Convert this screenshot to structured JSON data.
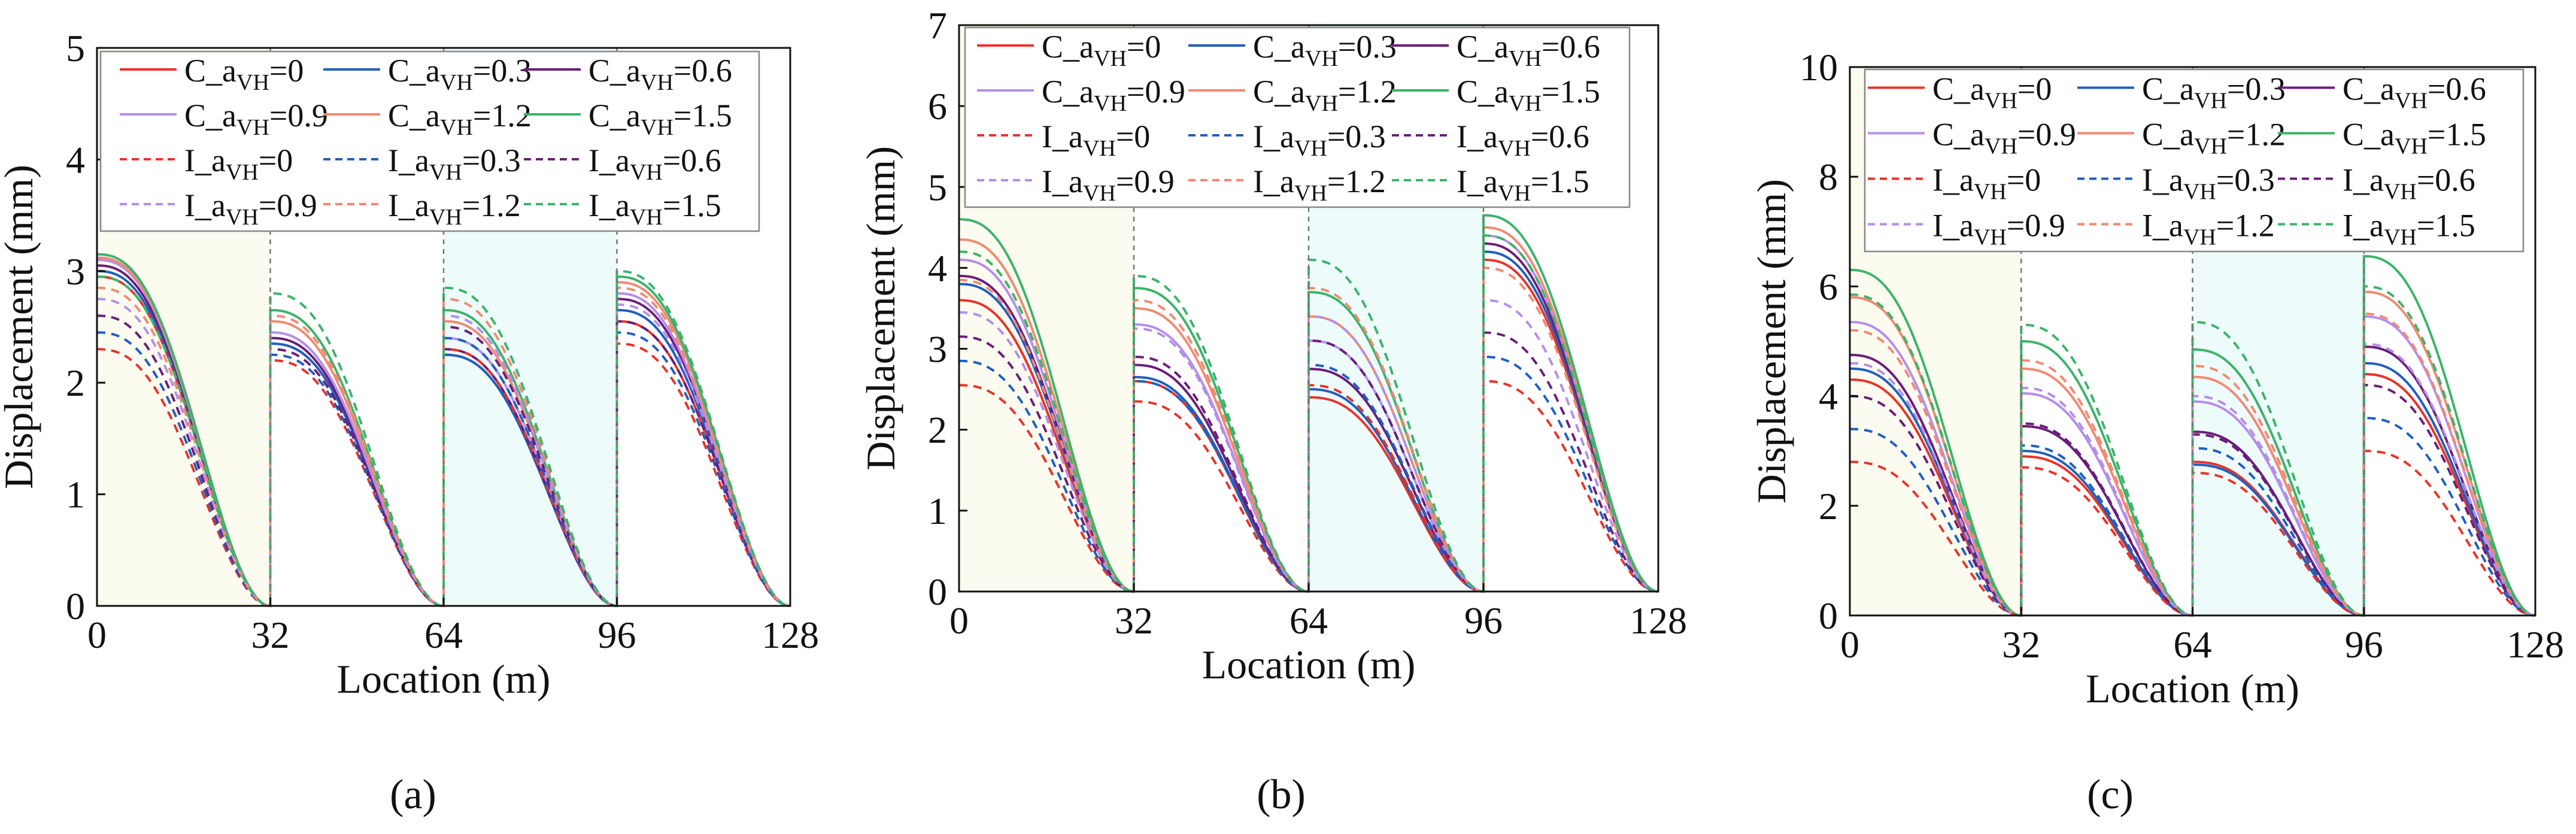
{
  "figure": {
    "x_unit_label": "Location (m)",
    "y_unit_label": "Displacement (mm)"
  },
  "legend_entries": [
    {
      "prefix": "C_a",
      "sub": "VH",
      "suffix": "=0",
      "color": "#e8332a",
      "dash": false
    },
    {
      "prefix": "C_a",
      "sub": "VH",
      "suffix": "=0.3",
      "color": "#1f5fbf",
      "dash": false
    },
    {
      "prefix": "C_a",
      "sub": "VH",
      "suffix": "=0.6",
      "color": "#6b1d7a",
      "dash": false
    },
    {
      "prefix": "C_a",
      "sub": "VH",
      "suffix": "=0.9",
      "color": "#b58ee8",
      "dash": false
    },
    {
      "prefix": "C_a",
      "sub": "VH",
      "suffix": "=1.2",
      "color": "#f08a72",
      "dash": false
    },
    {
      "prefix": "C_a",
      "sub": "VH",
      "suffix": "=1.5",
      "color": "#3cb36a",
      "dash": false
    },
    {
      "prefix": "I_a",
      "sub": "VH",
      "suffix": "=0",
      "color": "#e8332a",
      "dash": true
    },
    {
      "prefix": "I_a",
      "sub": "VH",
      "suffix": "=0.3",
      "color": "#1f5fbf",
      "dash": true
    },
    {
      "prefix": "I_a",
      "sub": "VH",
      "suffix": "=0.6",
      "color": "#6b1d7a",
      "dash": true
    },
    {
      "prefix": "I_a",
      "sub": "VH",
      "suffix": "=0.9",
      "color": "#b58ee8",
      "dash": true
    },
    {
      "prefix": "I_a",
      "sub": "VH",
      "suffix": "=1.2",
      "color": "#f08a72",
      "dash": true
    },
    {
      "prefix": "I_a",
      "sub": "VH",
      "suffix": "=1.5",
      "color": "#3cb36a",
      "dash": true
    }
  ],
  "chart_data": [
    {
      "panel_label": "(a)",
      "type": "line",
      "xlabel": "Location (m)",
      "ylabel": "Displacement (mm)",
      "xlim": [
        0,
        128
      ],
      "ylim": [
        0,
        5
      ],
      "xticks": [
        "0",
        "32",
        "64",
        "96",
        "128"
      ],
      "yticks": [
        "0",
        "1",
        "2",
        "3",
        "4",
        "5"
      ],
      "segment_boundaries": [
        32,
        64,
        96
      ],
      "segment_shading": [
        "#fbfbf0",
        "#ffffff",
        "#eefbfb",
        "#ffffff"
      ],
      "series": [
        {
          "name": "C_aVH=0",
          "segment_peaks": [
            2.95,
            2.35,
            2.25,
            2.55
          ]
        },
        {
          "name": "C_aVH=0.3",
          "segment_peaks": [
            3.0,
            2.35,
            2.25,
            2.65
          ]
        },
        {
          "name": "C_aVH=0.6",
          "segment_peaks": [
            3.05,
            2.4,
            2.3,
            2.75
          ]
        },
        {
          "name": "C_aVH=0.9",
          "segment_peaks": [
            3.1,
            2.45,
            2.4,
            2.8
          ]
        },
        {
          "name": "C_aVH=1.2",
          "segment_peaks": [
            3.12,
            2.55,
            2.55,
            2.9
          ]
        },
        {
          "name": "C_aVH=1.5",
          "segment_peaks": [
            3.15,
            2.65,
            2.65,
            2.95
          ]
        },
        {
          "name": "I_aVH=0",
          "segment_peaks": [
            2.3,
            2.2,
            2.3,
            2.35
          ]
        },
        {
          "name": "I_aVH=0.3",
          "segment_peaks": [
            2.45,
            2.25,
            2.4,
            2.45
          ]
        },
        {
          "name": "I_aVH=0.6",
          "segment_peaks": [
            2.6,
            2.3,
            2.5,
            2.55
          ]
        },
        {
          "name": "I_aVH=0.9",
          "segment_peaks": [
            2.75,
            2.45,
            2.6,
            2.7
          ]
        },
        {
          "name": "I_aVH=1.2",
          "segment_peaks": [
            2.85,
            2.6,
            2.75,
            2.85
          ]
        },
        {
          "name": "I_aVH=1.5",
          "segment_peaks": [
            2.95,
            2.8,
            2.85,
            3.0
          ]
        }
      ]
    },
    {
      "panel_label": "(b)",
      "type": "line",
      "xlabel": "Location (m)",
      "ylabel": "Displacement (mm)",
      "xlim": [
        0,
        128
      ],
      "ylim": [
        0,
        7
      ],
      "xticks": [
        "0",
        "32",
        "64",
        "96",
        "128"
      ],
      "yticks": [
        "0",
        "1",
        "2",
        "3",
        "4",
        "5",
        "6",
        "7"
      ],
      "segment_boundaries": [
        32,
        64,
        96
      ],
      "segment_shading": [
        "#fbfbf0",
        "#ffffff",
        "#eefbfb",
        "#ffffff"
      ],
      "series": [
        {
          "name": "C_aVH=0",
          "segment_peaks": [
            3.6,
            2.6,
            2.4,
            4.1
          ]
        },
        {
          "name": "C_aVH=0.3",
          "segment_peaks": [
            3.8,
            2.65,
            2.5,
            4.2
          ]
        },
        {
          "name": "C_aVH=0.6",
          "segment_peaks": [
            3.9,
            2.8,
            2.75,
            4.3
          ]
        },
        {
          "name": "C_aVH=0.9",
          "segment_peaks": [
            4.1,
            3.3,
            3.1,
            4.4
          ]
        },
        {
          "name": "C_aVH=1.2",
          "segment_peaks": [
            4.35,
            3.5,
            3.4,
            4.5
          ]
        },
        {
          "name": "C_aVH=1.5",
          "segment_peaks": [
            4.6,
            3.75,
            3.7,
            4.65
          ]
        },
        {
          "name": "I_aVH=0",
          "segment_peaks": [
            2.55,
            2.35,
            2.55,
            2.6
          ]
        },
        {
          "name": "I_aVH=0.3",
          "segment_peaks": [
            2.85,
            2.6,
            2.8,
            2.9
          ]
        },
        {
          "name": "I_aVH=0.6",
          "segment_peaks": [
            3.15,
            2.9,
            3.1,
            3.2
          ]
        },
        {
          "name": "I_aVH=0.9",
          "segment_peaks": [
            3.45,
            3.25,
            3.4,
            3.6
          ]
        },
        {
          "name": "I_aVH=1.2",
          "segment_peaks": [
            3.85,
            3.6,
            3.75,
            4.0
          ]
        },
        {
          "name": "I_aVH=1.5",
          "segment_peaks": [
            4.2,
            3.9,
            4.1,
            4.4
          ]
        }
      ]
    },
    {
      "panel_label": "(c)",
      "type": "line",
      "xlabel": "Location (m)",
      "ylabel": "Displacement (mm)",
      "xlim": [
        0,
        128
      ],
      "ylim": [
        0,
        10
      ],
      "xticks": [
        "0",
        "32",
        "64",
        "96",
        "128"
      ],
      "yticks": [
        "0",
        "2",
        "4",
        "6",
        "8",
        "10"
      ],
      "segment_boundaries": [
        32,
        64,
        96
      ],
      "segment_shading": [
        "#fbfbf0",
        "#ffffff",
        "#eefbfb",
        "#ffffff"
      ],
      "series": [
        {
          "name": "C_aVH=0",
          "segment_peaks": [
            4.3,
            2.9,
            2.8,
            4.4
          ]
        },
        {
          "name": "C_aVH=0.3",
          "segment_peaks": [
            4.5,
            3.0,
            2.75,
            4.6
          ]
        },
        {
          "name": "C_aVH=0.6",
          "segment_peaks": [
            4.75,
            3.45,
            3.35,
            4.9
          ]
        },
        {
          "name": "C_aVH=0.9",
          "segment_peaks": [
            5.35,
            4.05,
            3.9,
            5.45
          ]
        },
        {
          "name": "C_aVH=1.2",
          "segment_peaks": [
            5.8,
            4.5,
            4.35,
            5.9
          ]
        },
        {
          "name": "C_aVH=1.5",
          "segment_peaks": [
            6.3,
            5.0,
            4.85,
            6.55
          ]
        },
        {
          "name": "I_aVH=0",
          "segment_peaks": [
            2.8,
            2.7,
            2.6,
            3.0
          ]
        },
        {
          "name": "I_aVH=0.3",
          "segment_peaks": [
            3.4,
            3.1,
            3.05,
            3.6
          ]
        },
        {
          "name": "I_aVH=0.6",
          "segment_peaks": [
            4.0,
            3.5,
            3.3,
            4.2
          ]
        },
        {
          "name": "I_aVH=0.9",
          "segment_peaks": [
            4.6,
            4.15,
            4.0,
            4.95
          ]
        },
        {
          "name": "I_aVH=1.2",
          "segment_peaks": [
            5.2,
            4.65,
            4.55,
            5.5
          ]
        },
        {
          "name": "I_aVH=1.5",
          "segment_peaks": [
            5.85,
            5.3,
            5.35,
            6.0
          ]
        }
      ]
    }
  ]
}
